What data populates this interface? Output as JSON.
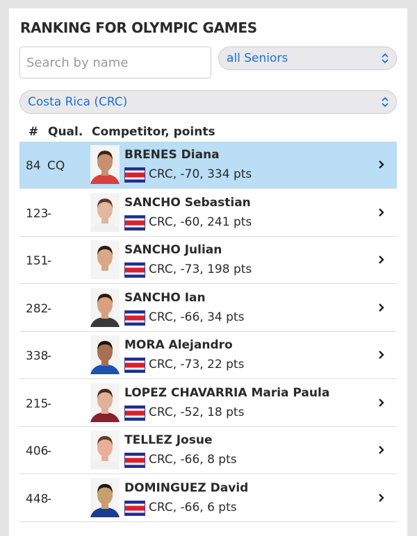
{
  "title": "RANKING FOR OLYMPIC GAMES",
  "search": {
    "placeholder": "Search by name",
    "value": ""
  },
  "category_select": {
    "value": "all Seniors"
  },
  "country_select": {
    "value": "Costa Rica (CRC)"
  },
  "columns": {
    "rank": "#",
    "qual": "Qual.",
    "competitor": "Competitor, points"
  },
  "colors": {
    "highlight": "#b9def5",
    "select_text": "#1c6fd0"
  },
  "rows": [
    {
      "rank": "84",
      "qual": "CQ",
      "name": "BRENES Diana",
      "info": "CRC, -70, 334 pts",
      "highlighted": true,
      "skin": "#c89070",
      "hair": "#3a2418",
      "shirt": "#d94040"
    },
    {
      "rank": "123",
      "qual": "-",
      "name": "SANCHO Sebastian",
      "info": "CRC, -60, 241 pts",
      "skin": "#e0b8a0",
      "hair": "#5a3a28",
      "shirt": "#f0f0f0"
    },
    {
      "rank": "151",
      "qual": "-",
      "name": "SANCHO Julian",
      "info": "CRC, -73, 198 pts",
      "skin": "#d8a888",
      "hair": "#2a1a10",
      "shirt": "#f4f4f4"
    },
    {
      "rank": "282",
      "qual": "-",
      "name": "SANCHO Ian",
      "info": "CRC, -66, 34 pts",
      "skin": "#d8a080",
      "hair": "#2a1a10",
      "shirt": "#3a3a3a"
    },
    {
      "rank": "338",
      "qual": "-",
      "name": "MORA Alejandro",
      "info": "CRC, -73, 22 pts",
      "skin": "#a87050",
      "hair": "#1a1010",
      "shirt": "#2050b0"
    },
    {
      "rank": "215",
      "qual": "-",
      "name": "LOPEZ CHAVARRIA Maria Paula",
      "info": "CRC, -52, 18 pts",
      "skin": "#e0b098",
      "hair": "#4a2a1a",
      "shirt": "#8a2030"
    },
    {
      "rank": "406",
      "qual": "-",
      "name": "TELLEZ Josue",
      "info": "CRC, -66, 8 pts",
      "skin": "#e8b098",
      "hair": "#6a3a22",
      "shirt": "#f0f0f0"
    },
    {
      "rank": "448",
      "qual": "-",
      "name": "DOMINGUEZ David",
      "info": "CRC, -66, 6 pts",
      "skin": "#c8a070",
      "hair": "#1a1a1a",
      "shirt": "#1c3c90"
    }
  ]
}
